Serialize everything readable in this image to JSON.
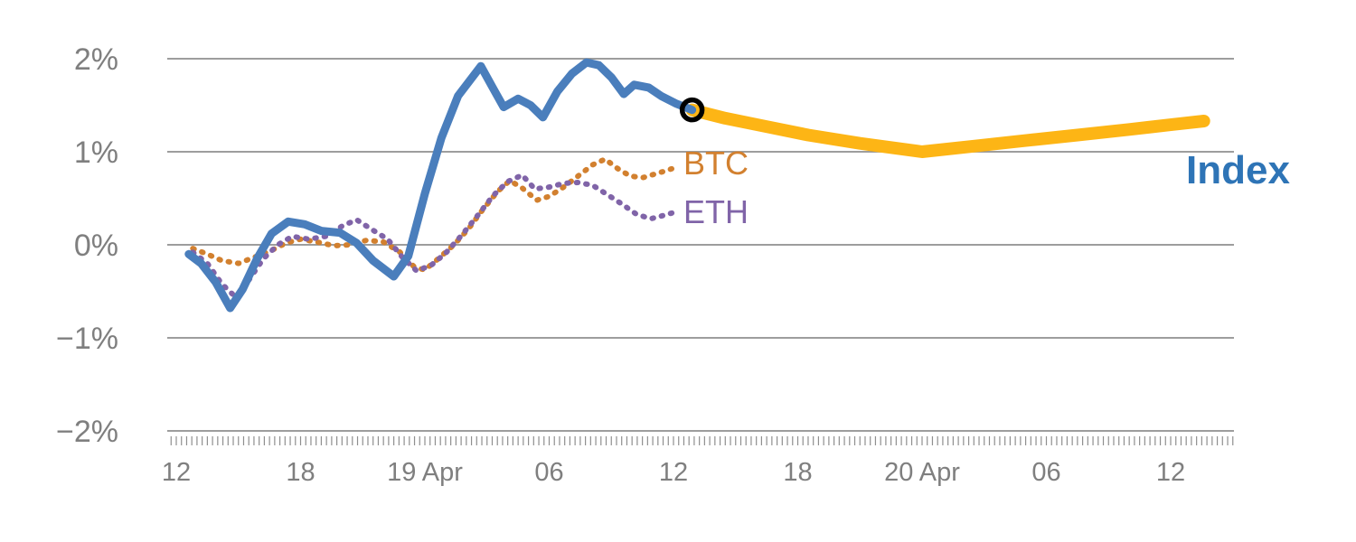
{
  "page": {
    "background": "#ffffff"
  },
  "chart": {
    "grid_color": "#8f8f8f",
    "axis_text_color": "#7f7f7f",
    "minor_tick_color": "#8f8f8f"
  },
  "labels": {
    "btc": {
      "text": "BTC",
      "color": "#d2802f"
    },
    "eth": {
      "text": "ETH",
      "color": "#8064a8"
    },
    "index": {
      "text": "Index",
      "color": "#2e74b6"
    }
  },
  "chart_data": {
    "type": "line",
    "title": "",
    "xlabel": "",
    "ylabel": "",
    "y_unit": "percent",
    "x_unit": "hours from first tick (Apr 18 12:00)",
    "ylim": [
      -2,
      2
    ],
    "xlim_hours": [
      -0.45,
      51.05
    ],
    "grid": true,
    "legend_position": "inline-labels",
    "y_ticks": [
      {
        "value": 2,
        "label": "2%"
      },
      {
        "value": 1,
        "label": "1%"
      },
      {
        "value": 0,
        "label": "0%"
      },
      {
        "value": -1,
        "label": "−1%"
      },
      {
        "value": -2,
        "label": "−2%"
      }
    ],
    "x_ticks": [
      {
        "hour": 0,
        "label": "12"
      },
      {
        "hour": 6,
        "label": "18"
      },
      {
        "hour": 12,
        "label": "19 Apr"
      },
      {
        "hour": 18,
        "label": "06"
      },
      {
        "hour": 24,
        "label": "12"
      },
      {
        "hour": 30,
        "label": "18"
      },
      {
        "hour": 36,
        "label": "20 Apr"
      },
      {
        "hour": 42,
        "label": "06"
      },
      {
        "hour": 48,
        "label": "12"
      }
    ],
    "series": [
      {
        "name": "BTC",
        "color": "#d2802f",
        "style": "dotted",
        "width": 6,
        "points": [
          [
            0.8,
            -0.04
          ],
          [
            1.5,
            -0.1
          ],
          [
            2.2,
            -0.17
          ],
          [
            3.0,
            -0.2
          ],
          [
            3.8,
            -0.13
          ],
          [
            4.6,
            -0.06
          ],
          [
            5.3,
            0.02
          ],
          [
            6.0,
            0.06
          ],
          [
            6.8,
            0.03
          ],
          [
            7.6,
            -0.01
          ],
          [
            8.4,
            0.0
          ],
          [
            9.2,
            0.05
          ],
          [
            10.0,
            0.03
          ],
          [
            10.8,
            -0.08
          ],
          [
            11.5,
            -0.24
          ],
          [
            12.0,
            -0.27
          ],
          [
            12.7,
            -0.14
          ],
          [
            13.4,
            0.0
          ],
          [
            14.1,
            0.17
          ],
          [
            14.8,
            0.38
          ],
          [
            15.5,
            0.57
          ],
          [
            16.1,
            0.69
          ],
          [
            16.7,
            0.61
          ],
          [
            17.4,
            0.48
          ],
          [
            18.0,
            0.52
          ],
          [
            18.7,
            0.62
          ],
          [
            19.4,
            0.74
          ],
          [
            20.1,
            0.86
          ],
          [
            20.7,
            0.92
          ],
          [
            21.3,
            0.82
          ],
          [
            21.9,
            0.74
          ],
          [
            22.5,
            0.72
          ],
          [
            23.1,
            0.76
          ],
          [
            23.7,
            0.8
          ],
          [
            24.2,
            0.84
          ]
        ]
      },
      {
        "name": "ETH",
        "color": "#8064a8",
        "style": "dotted",
        "width": 6,
        "points": [
          [
            0.8,
            -0.08
          ],
          [
            1.5,
            -0.2
          ],
          [
            2.2,
            -0.42
          ],
          [
            2.9,
            -0.57
          ],
          [
            3.5,
            -0.38
          ],
          [
            4.2,
            -0.15
          ],
          [
            4.9,
            0.0
          ],
          [
            5.6,
            0.09
          ],
          [
            6.4,
            0.06
          ],
          [
            7.2,
            0.09
          ],
          [
            8.0,
            0.2
          ],
          [
            8.7,
            0.27
          ],
          [
            9.4,
            0.17
          ],
          [
            10.2,
            0.06
          ],
          [
            10.9,
            -0.13
          ],
          [
            11.6,
            -0.28
          ],
          [
            12.3,
            -0.22
          ],
          [
            13.0,
            -0.09
          ],
          [
            13.8,
            0.11
          ],
          [
            14.6,
            0.33
          ],
          [
            15.3,
            0.53
          ],
          [
            16.0,
            0.68
          ],
          [
            16.7,
            0.75
          ],
          [
            17.3,
            0.6
          ],
          [
            18.0,
            0.62
          ],
          [
            18.7,
            0.66
          ],
          [
            19.4,
            0.67
          ],
          [
            20.1,
            0.64
          ],
          [
            20.8,
            0.54
          ],
          [
            21.5,
            0.44
          ],
          [
            22.2,
            0.33
          ],
          [
            22.9,
            0.28
          ],
          [
            23.6,
            0.32
          ],
          [
            24.2,
            0.36
          ]
        ]
      },
      {
        "name": "Index projected",
        "color": "#fdb515",
        "style": "solid",
        "width": 14,
        "points": [
          [
            24.9,
            1.45
          ],
          [
            26.5,
            1.36
          ],
          [
            28.5,
            1.27
          ],
          [
            30.5,
            1.18
          ],
          [
            33.0,
            1.09
          ],
          [
            36.0,
            1.0
          ],
          [
            38.5,
            1.06
          ],
          [
            41.0,
            1.12
          ],
          [
            43.5,
            1.18
          ],
          [
            46.0,
            1.24
          ],
          [
            48.0,
            1.29
          ],
          [
            49.6,
            1.33
          ]
        ]
      },
      {
        "name": "Index",
        "color": "#4a7ebc",
        "style": "solid",
        "width": 9,
        "points": [
          [
            0.6,
            -0.1
          ],
          [
            1.2,
            -0.2
          ],
          [
            1.9,
            -0.4
          ],
          [
            2.6,
            -0.68
          ],
          [
            3.2,
            -0.48
          ],
          [
            3.9,
            -0.15
          ],
          [
            4.6,
            0.12
          ],
          [
            5.4,
            0.25
          ],
          [
            6.2,
            0.22
          ],
          [
            7.0,
            0.15
          ],
          [
            7.9,
            0.13
          ],
          [
            8.7,
            0.02
          ],
          [
            9.5,
            -0.17
          ],
          [
            10.5,
            -0.34
          ],
          [
            11.2,
            -0.12
          ],
          [
            12.0,
            0.55
          ],
          [
            12.8,
            1.15
          ],
          [
            13.6,
            1.6
          ],
          [
            14.7,
            1.92
          ],
          [
            15.3,
            1.68
          ],
          [
            15.8,
            1.48
          ],
          [
            16.5,
            1.57
          ],
          [
            17.1,
            1.5
          ],
          [
            17.7,
            1.37
          ],
          [
            18.4,
            1.65
          ],
          [
            19.1,
            1.84
          ],
          [
            19.8,
            1.96
          ],
          [
            20.4,
            1.93
          ],
          [
            21.0,
            1.8
          ],
          [
            21.6,
            1.62
          ],
          [
            22.1,
            1.72
          ],
          [
            22.8,
            1.69
          ],
          [
            23.4,
            1.6
          ],
          [
            24.1,
            1.52
          ],
          [
            24.9,
            1.45
          ]
        ]
      }
    ],
    "marker": {
      "series": "Index",
      "hour": 24.9,
      "value": 1.45,
      "stroke": "#000000",
      "radius": 11,
      "stroke_width": 5.5
    }
  }
}
